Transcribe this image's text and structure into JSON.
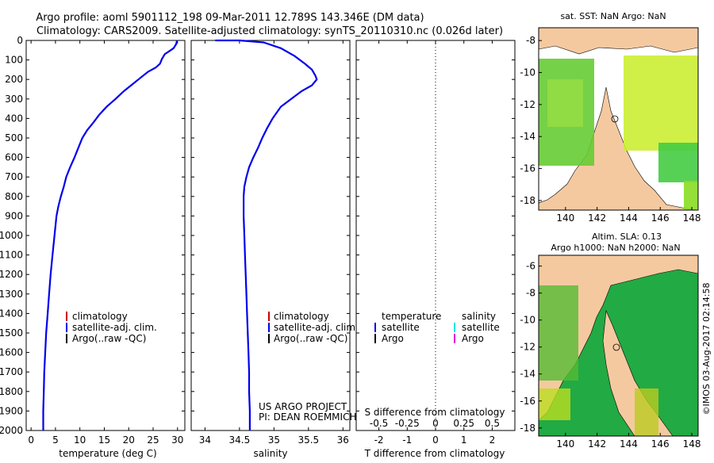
{
  "header": {
    "line1": "Argo profile: aoml 5901112_198 09-Mar-2011 12.789S 143.346E (DM data)",
    "line2": "Climatology: CARS2009. Satellite-adjusted climatology: synTS_20110310.nc (0.026d later)"
  },
  "colors": {
    "climatology": "#cc0000",
    "satellite": "#0000ee",
    "argo": "#000000",
    "sal_satellite": "#00e5e5",
    "sal_argo": "#dd00dd",
    "land": "#f5c9a0",
    "sst_fill": "#66cc33",
    "ocean_deep": "#22aa44"
  },
  "chart_data": [
    {
      "type": "line",
      "id": "temperature",
      "xlabel": "temperature (deg C)",
      "ylabel": "",
      "xlim": [
        -1,
        31.5
      ],
      "ylim": [
        2000,
        0
      ],
      "xticks": [
        0,
        5,
        10,
        15,
        20,
        25,
        30
      ],
      "yticks": [
        0,
        100,
        200,
        300,
        400,
        500,
        600,
        700,
        800,
        900,
        1000,
        1100,
        1200,
        1300,
        1400,
        1500,
        1600,
        1700,
        1800,
        1900,
        2000
      ],
      "legend": [
        "climatology",
        "satellite-adj. clim.",
        "Argo(..raw -QC)"
      ],
      "series": [
        {
          "name": "satellite-adj. clim.",
          "color": "#0000ee",
          "points": [
            [
              29.9,
              0
            ],
            [
              29.7,
              20
            ],
            [
              29.2,
              40
            ],
            [
              28.0,
              60
            ],
            [
              27.4,
              70
            ],
            [
              26.8,
              95
            ],
            [
              26.4,
              120
            ],
            [
              25.5,
              140
            ],
            [
              24.0,
              160
            ],
            [
              22.5,
              190
            ],
            [
              21.0,
              220
            ],
            [
              19.0,
              260
            ],
            [
              17.3,
              300
            ],
            [
              15.5,
              340
            ],
            [
              14.0,
              380
            ],
            [
              12.8,
              420
            ],
            [
              11.5,
              460
            ],
            [
              10.5,
              500
            ],
            [
              9.7,
              550
            ],
            [
              8.9,
              600
            ],
            [
              8.0,
              650
            ],
            [
              7.2,
              700
            ],
            [
              6.7,
              750
            ],
            [
              6.1,
              800
            ],
            [
              5.6,
              850
            ],
            [
              5.2,
              900
            ],
            [
              4.8,
              1000
            ],
            [
              4.4,
              1100
            ],
            [
              4.0,
              1200
            ],
            [
              3.7,
              1300
            ],
            [
              3.4,
              1400
            ],
            [
              3.1,
              1500
            ],
            [
              2.9,
              1600
            ],
            [
              2.7,
              1700
            ],
            [
              2.6,
              1800
            ],
            [
              2.5,
              1900
            ],
            [
              2.5,
              2000
            ]
          ]
        }
      ]
    },
    {
      "type": "line",
      "id": "salinity",
      "xlabel": "salinity",
      "ylabel": "",
      "xlim": [
        33.8,
        36.1
      ],
      "ylim": [
        2000,
        0
      ],
      "xticks": [
        34,
        34.5,
        35,
        35.5,
        36
      ],
      "legend": [
        "climatology",
        "satellite-adj. clim.",
        "Argo(..raw -QC)"
      ],
      "annotation": [
        "US ARGO PROJECT",
        "PI: DEAN ROEMMICH"
      ],
      "series": [
        {
          "name": "satellite-adj. clim.",
          "color": "#0000ee",
          "points": [
            [
              34.15,
              0
            ],
            [
              34.5,
              0
            ],
            [
              34.85,
              10
            ],
            [
              35.1,
              40
            ],
            [
              35.3,
              80
            ],
            [
              35.45,
              120
            ],
            [
              35.55,
              150
            ],
            [
              35.6,
              180
            ],
            [
              35.62,
              200
            ],
            [
              35.55,
              230
            ],
            [
              35.4,
              260
            ],
            [
              35.25,
              300
            ],
            [
              35.1,
              340
            ],
            [
              34.98,
              400
            ],
            [
              34.9,
              450
            ],
            [
              34.83,
              500
            ],
            [
              34.77,
              550
            ],
            [
              34.7,
              600
            ],
            [
              34.64,
              650
            ],
            [
              34.6,
              700
            ],
            [
              34.57,
              750
            ],
            [
              34.56,
              800
            ],
            [
              34.56,
              900
            ],
            [
              34.57,
              1000
            ],
            [
              34.58,
              1100
            ],
            [
              34.59,
              1200
            ],
            [
              34.6,
              1300
            ],
            [
              34.61,
              1400
            ],
            [
              34.62,
              1500
            ],
            [
              34.63,
              1600
            ],
            [
              34.64,
              1700
            ],
            [
              34.64,
              1800
            ],
            [
              34.65,
              1900
            ],
            [
              34.65,
              2000
            ]
          ]
        }
      ]
    },
    {
      "type": "line",
      "id": "difference",
      "xlabel": "T difference from climatology",
      "xlabel_top": "S difference from climatology",
      "xlim": [
        -2.8,
        2.8
      ],
      "ylim": [
        2000,
        0
      ],
      "xticks_t": [
        [
          "-2",
          -2
        ],
        [
          "-1",
          -1
        ],
        [
          "0",
          0
        ],
        [
          "1",
          1
        ],
        [
          "2",
          2
        ]
      ],
      "xticks_s": [
        [
          "-0.5",
          -2
        ],
        [
          "-0.25",
          -1
        ],
        [
          "0",
          0
        ],
        [
          "0.25",
          1
        ],
        [
          "0.5",
          2
        ]
      ],
      "legend_t_title": "temperature",
      "legend_s_title": "salinity",
      "legend_t": [
        "satellite",
        "Argo"
      ],
      "legend_s": [
        "satellite",
        "Argo"
      ],
      "series": []
    },
    {
      "type": "heatmap",
      "id": "sst-map",
      "title": "sat. SST: NaN Argo: NaN",
      "xticks": [
        140,
        142,
        144,
        146,
        148
      ],
      "yticks": [
        -8,
        -10,
        -12,
        -14,
        -16,
        -18
      ],
      "xlim": [
        138.3,
        148.4
      ],
      "ylim": [
        -18.6,
        -7.2
      ]
    },
    {
      "type": "heatmap",
      "id": "sla-map",
      "title": "Altim. SLA: 0.13",
      "subtitle": "Argo h1000: NaN h2000: NaN",
      "xticks": [
        140,
        142,
        144,
        146,
        148
      ],
      "yticks": [
        -6,
        -8,
        -10,
        -12,
        -14,
        -16,
        -18
      ],
      "xlim": [
        138.3,
        148.4
      ],
      "ylim": [
        -18.6,
        -5.2
      ]
    }
  ],
  "footer": {
    "credit": "©IMOS 03-Aug-2017 02:14:58"
  }
}
